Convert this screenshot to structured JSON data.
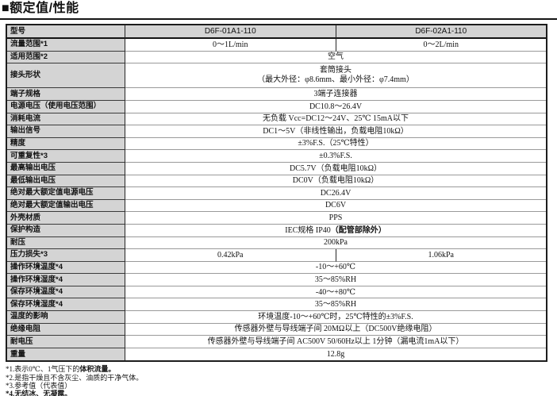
{
  "title": "■额定值/性能",
  "colors": {
    "header_bg": "#d4d4d4",
    "border_dark": "#1d1d1d",
    "border_light": "#9a9a9a",
    "text": "#111111"
  },
  "table": {
    "rows": [
      {
        "header": true,
        "label": "型号",
        "values": [
          "D6F-01A1-110",
          "D6F-02A1-110"
        ]
      },
      {
        "label": "流量范围*1",
        "values": [
          "0～1L/min",
          "0～2L/min"
        ]
      },
      {
        "label": "适用范围*2",
        "value": "空气"
      },
      {
        "label": "接头形状",
        "lines": [
          "套筒接头",
          "（最大外径：φ8.6mm、最小外径：φ7.4mm）"
        ]
      },
      {
        "label": "端子规格",
        "value": "3端子连接器"
      },
      {
        "label": "电源电压（使用电压范围）",
        "value": "DC10.8～26.4V"
      },
      {
        "label": "消耗电流",
        "value": "无负载 Vcc=DC12～24V、25℃ 15mA以下"
      },
      {
        "label": "输出信号",
        "value": "DC1～5V（非线性输出，负载电阻10kΩ）"
      },
      {
        "label": "精度",
        "value": "±3%F.S.（25℃特性）"
      },
      {
        "label": "可重复性*3",
        "value": "±0.3%F.S."
      },
      {
        "label": "最高输出电压",
        "value": "DC5.7V（负载电阻10kΩ）"
      },
      {
        "label": "最低输出电压",
        "value": "DC0V（负载电阻10kΩ）"
      },
      {
        "label": "绝对最大额定值电源电压",
        "value": "DC26.4V"
      },
      {
        "label": "绝对最大额定值输出电压",
        "value": "DC6V"
      },
      {
        "label": "外壳材质",
        "value": "PPS"
      },
      {
        "label": "保护构造",
        "pre": "IEC规格  IP40 ",
        "bold": "（配管部除外）"
      },
      {
        "label": "耐压",
        "value": "200kPa"
      },
      {
        "label": "压力损失*3",
        "values": [
          "0.42kPa",
          "1.06kPa"
        ]
      },
      {
        "label": "操作环境温度*4",
        "value": "-10～+60℃"
      },
      {
        "label": "操作环境湿度*4",
        "value": "35～85%RH"
      },
      {
        "label": "保存环境温度*4",
        "value": "-40～+80℃"
      },
      {
        "label": "保存环境湿度*4",
        "value": "35～85%RH"
      },
      {
        "label": "温度的影响",
        "value": "环境温度-10～+60℃时，25℃特性的±3%F.S."
      },
      {
        "label": "绝缘电阻",
        "value": "传感器外壁与导线端子间  20MΩ以上（DC500V绝缘电阻）"
      },
      {
        "label": "耐电压",
        "value": "传感器外壁与导线端子间 AC500V  50/60Hz以上  1分钟（漏电流1mA以下）"
      },
      {
        "label": "重量",
        "value": "12.8g"
      }
    ]
  },
  "notes": [
    {
      "pre": "*1.表示0℃、1气压下的",
      "bold": "体积流量。",
      "post": ""
    },
    {
      "pre": "*2.是指干燥且不含灰尘、油质的干净气体。",
      "bold": "",
      "post": ""
    },
    {
      "pre": "*3.参考值（代表值）",
      "bold": "",
      "post": ""
    },
    {
      "pre": "",
      "bold": "*4.无结冰、无凝露。",
      "post": ""
    }
  ]
}
